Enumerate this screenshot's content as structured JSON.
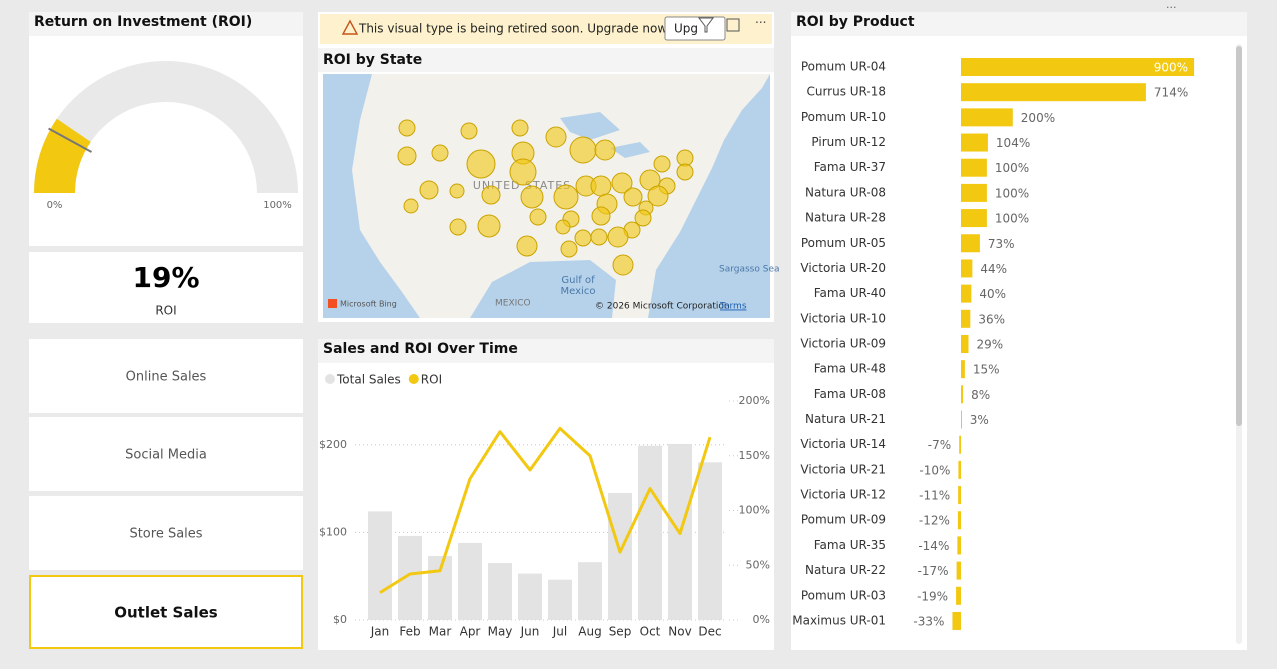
{
  "gauge": {
    "title": "Return on Investment (ROI)",
    "value": 19,
    "target": 16,
    "range": [
      {
        "value": 0,
        "label": "0%"
      },
      {
        "value": 100,
        "label": "100%"
      }
    ]
  },
  "card": {
    "value": "19%",
    "label": "ROI"
  },
  "slicer": {
    "buttons": [
      {
        "label": "Online Sales",
        "active": false
      },
      {
        "label": "Social Media",
        "active": false
      },
      {
        "label": "Store Sales",
        "active": false
      },
      {
        "label": "Outlet Sales",
        "active": true
      }
    ]
  },
  "map": {
    "warning": "This visual type is being retired soon. Upgrade now to...",
    "button": "Upg",
    "title": "ROI by State",
    "labels": {
      "country": "UNITED STATES",
      "gulf": "Gulf of",
      "gulf2": "Mexico",
      "sea": "Sargasso Sea",
      "mexico": "MEXICO",
      "bing": "Microsoft Bing",
      "copyright": "© 2026 Microsoft Corporation",
      "terms": "Terms"
    }
  },
  "chart_data": [
    {
      "type": "bar-line",
      "title": "Sales and ROI Over Time",
      "categories": [
        "Jan",
        "Feb",
        "Mar",
        "Apr",
        "May",
        "Jun",
        "Jul",
        "Aug",
        "Sep",
        "Oct",
        "Nov",
        "Dec"
      ],
      "series": [
        {
          "name": "Total Sales",
          "type": "bar",
          "color": "#e3e3e3",
          "values": [
            124,
            96,
            73,
            88,
            65,
            53,
            46,
            66,
            145,
            199,
            201,
            180
          ]
        },
        {
          "name": "ROI",
          "type": "line",
          "axis": "y2",
          "color": "#f2c811",
          "values": [
            25,
            42,
            45,
            129,
            172,
            137,
            175,
            150,
            62,
            120,
            79,
            167
          ]
        }
      ],
      "ylim": [
        0,
        250
      ],
      "yticks": [
        {
          "value": 0,
          "label": "$0"
        },
        {
          "value": 100,
          "label": "$100"
        },
        {
          "value": 200,
          "label": "$200"
        }
      ],
      "y2lim": [
        0,
        200
      ],
      "y2ticks": [
        {
          "value": 0,
          "label": "0%"
        },
        {
          "value": 50,
          "label": "50%"
        },
        {
          "value": 100,
          "label": "100%"
        },
        {
          "value": 150,
          "label": "150%"
        },
        {
          "value": 200,
          "label": "200%"
        }
      ],
      "grid": true
    },
    {
      "type": "bar",
      "orientation": "horizontal",
      "title": "ROI by Product",
      "color": "#f2c811",
      "categories": [
        "Pomum UR-04",
        "Currus UR-18",
        "Pomum UR-10",
        "Pirum UR-12",
        "Fama UR-37",
        "Natura UR-08",
        "Natura UR-28",
        "Pomum UR-05",
        "Victoria UR-20",
        "Fama UR-40",
        "Victoria UR-10",
        "Victoria UR-09",
        "Fama UR-48",
        "Fama UR-08",
        "Natura UR-21",
        "Victoria UR-14",
        "Victoria UR-21",
        "Victoria UR-12",
        "Pomum UR-09",
        "Fama UR-35",
        "Natura UR-22",
        "Pomum UR-03",
        "Maximus UR-01"
      ],
      "values": [
        900,
        714,
        200,
        104,
        100,
        100,
        100,
        73,
        44,
        40,
        36,
        29,
        15,
        8,
        3,
        -7,
        -10,
        -11,
        -12,
        -14,
        -17,
        -19,
        -33
      ],
      "value_labels": [
        "900%",
        "714%",
        "200%",
        "104%",
        "100%",
        "100%",
        "100%",
        "73%",
        "44%",
        "40%",
        "36%",
        "29%",
        "15%",
        "8%",
        "3%",
        "-7%",
        "-10%",
        "-11%",
        "-12%",
        "-14%",
        "-17%",
        "-19%",
        "-33%"
      ]
    }
  ]
}
